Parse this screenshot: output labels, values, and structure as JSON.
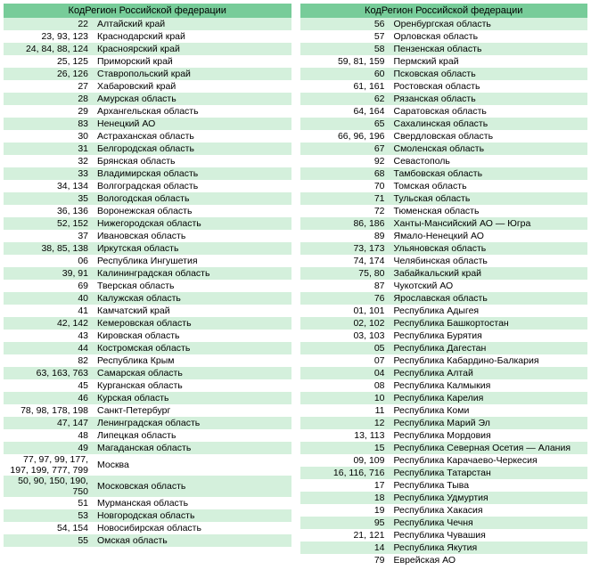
{
  "header_text": "КодРегион Российской федерации",
  "colors": {
    "header_bg": "#77cc99",
    "row_even_bg": "#d4f0dc",
    "row_odd_bg": "#ffffff",
    "text": "#000000"
  },
  "font": {
    "family": "Arial",
    "size_pt": 8
  },
  "left": [
    {
      "code": "22",
      "name": "Алтайский край"
    },
    {
      "code": "23, 93, 123",
      "name": "Краснодарский край"
    },
    {
      "code": "24, 84, 88, 124",
      "name": "Красноярский край"
    },
    {
      "code": "25, 125",
      "name": "Приморский край"
    },
    {
      "code": "26, 126",
      "name": "Ставропольский край"
    },
    {
      "code": "27",
      "name": "Хабаровский край"
    },
    {
      "code": "28",
      "name": "Амурская область"
    },
    {
      "code": "29",
      "name": "Архангельская область"
    },
    {
      "code": "83",
      "name": "Ненецкий АО"
    },
    {
      "code": "30",
      "name": "Астраханская область"
    },
    {
      "code": "31",
      "name": "Белгородская область"
    },
    {
      "code": "32",
      "name": "Брянская область"
    },
    {
      "code": "33",
      "name": "Владимирская область"
    },
    {
      "code": "34, 134",
      "name": "Волгоградская область"
    },
    {
      "code": "35",
      "name": "Вологодская область"
    },
    {
      "code": "36, 136",
      "name": "Воронежская область"
    },
    {
      "code": "52, 152",
      "name": "Нижегородская область"
    },
    {
      "code": "37",
      "name": "Ивановская область"
    },
    {
      "code": "38, 85, 138",
      "name": "Иркутская область"
    },
    {
      "code": "06",
      "name": "Республика Ингушетия"
    },
    {
      "code": "39, 91",
      "name": "Калининградская область"
    },
    {
      "code": "69",
      "name": "Тверская область"
    },
    {
      "code": "40",
      "name": "Калужская область"
    },
    {
      "code": "41",
      "name": "Камчатский край"
    },
    {
      "code": "42, 142",
      "name": "Кемеровская область"
    },
    {
      "code": "43",
      "name": "Кировская область"
    },
    {
      "code": "44",
      "name": "Костромская область"
    },
    {
      "code": "82",
      "name": "Республика Крым"
    },
    {
      "code": "63, 163, 763",
      "name": "Самарская область"
    },
    {
      "code": "45",
      "name": "Курганская область"
    },
    {
      "code": "46",
      "name": "Курская область"
    },
    {
      "code": "78, 98, 178, 198",
      "name": "Санкт-Петербург"
    },
    {
      "code": "47, 147",
      "name": "Ленинградская область"
    },
    {
      "code": "48",
      "name": "Липецкая область"
    },
    {
      "code": "49",
      "name": "Магаданская область"
    },
    {
      "code": "77, 97, 99, 177, 197, 199, 777, 799",
      "name": "Москва"
    },
    {
      "code": "50, 90, 150, 190, 750",
      "name": "Московская область"
    },
    {
      "code": "51",
      "name": "Мурманская область"
    },
    {
      "code": "53",
      "name": "Новгородская область"
    },
    {
      "code": "54, 154",
      "name": "Новосибирская область"
    },
    {
      "code": "55",
      "name": "Омская область"
    }
  ],
  "right": [
    {
      "code": "56",
      "name": "Оренбургская область"
    },
    {
      "code": "57",
      "name": "Орловская область"
    },
    {
      "code": "58",
      "name": "Пензенская область"
    },
    {
      "code": "59, 81, 159",
      "name": "Пермский край"
    },
    {
      "code": "60",
      "name": "Псковская область"
    },
    {
      "code": "61, 161",
      "name": "Ростовская область"
    },
    {
      "code": "62",
      "name": "Рязанская область"
    },
    {
      "code": "64, 164",
      "name": "Саратовская область"
    },
    {
      "code": "65",
      "name": "Сахалинская область"
    },
    {
      "code": "66, 96, 196",
      "name": "Свердловская область"
    },
    {
      "code": "67",
      "name": "Смоленская область"
    },
    {
      "code": "92",
      "name": "Севастополь"
    },
    {
      "code": "68",
      "name": "Тамбовская область"
    },
    {
      "code": "70",
      "name": "Томская область"
    },
    {
      "code": "71",
      "name": "Тульская область"
    },
    {
      "code": "72",
      "name": "Тюменская область"
    },
    {
      "code": "86, 186",
      "name": "Ханты-Мансийский АО — Югра"
    },
    {
      "code": "89",
      "name": "Ямало-Ненецкий АО"
    },
    {
      "code": "73, 173",
      "name": "Ульяновская область"
    },
    {
      "code": "74, 174",
      "name": "Челябинская область"
    },
    {
      "code": "75, 80",
      "name": "Забайкальский край"
    },
    {
      "code": "87",
      "name": "Чукотский АО"
    },
    {
      "code": "76",
      "name": "Ярославская область"
    },
    {
      "code": "01, 101",
      "name": "Республика Адыгея"
    },
    {
      "code": "02, 102",
      "name": "Республика Башкортостан"
    },
    {
      "code": "03, 103",
      "name": "Республика Бурятия"
    },
    {
      "code": "05",
      "name": "Республика Дагестан"
    },
    {
      "code": "07",
      "name": "Республика Кабардино-Балкария"
    },
    {
      "code": "04",
      "name": "Республика Алтай"
    },
    {
      "code": "08",
      "name": "Республика Калмыкия"
    },
    {
      "code": "10",
      "name": "Республика Карелия"
    },
    {
      "code": "11",
      "name": "Республика Коми"
    },
    {
      "code": "12",
      "name": "Республика Марий Эл"
    },
    {
      "code": "13, 113",
      "name": "Республика Мордовия"
    },
    {
      "code": "15",
      "name": "Республика Северная Осетия — Алания"
    },
    {
      "code": "09, 109",
      "name": "Республика Карачаево-Черкесия"
    },
    {
      "code": "16, 116, 716",
      "name": "Республика Татарстан"
    },
    {
      "code": "17",
      "name": "Республика Тыва"
    },
    {
      "code": "18",
      "name": "Республика Удмуртия"
    },
    {
      "code": "19",
      "name": "Республика Хакасия"
    },
    {
      "code": "95",
      "name": "Республика Чечня"
    },
    {
      "code": "21, 121",
      "name": "Республика Чувашия"
    },
    {
      "code": "14",
      "name": "Республика Якутия"
    },
    {
      "code": "79",
      "name": "Еврейская АО"
    }
  ]
}
